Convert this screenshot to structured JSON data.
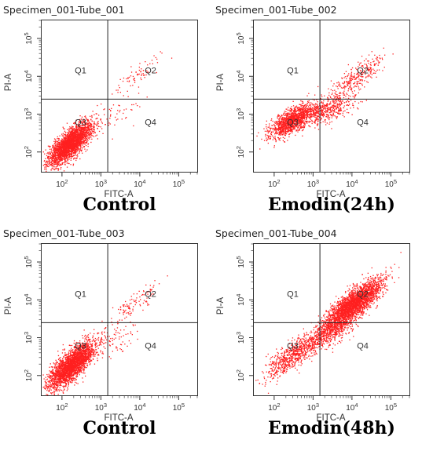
{
  "chart_data": [
    {
      "type": "scatter",
      "title": "Specimen_001-Tube_001",
      "caption": "Control",
      "xlabel": "FITC-A",
      "ylabel": "PI-A",
      "scale": "log",
      "xlim": [
        30,
        300000
      ],
      "ylim": [
        30,
        300000
      ],
      "x_ticks": [
        "10^2",
        "10^3",
        "10^4",
        "10^5"
      ],
      "y_ticks": [
        "10^2",
        "10^3",
        "10^4",
        "10^5"
      ],
      "quadrant_gate": {
        "x": 1500,
        "y": 2500
      },
      "quadrant_labels": [
        "Q1",
        "Q2",
        "Q3",
        "Q4"
      ],
      "color": "#ff2020",
      "populations": [
        {
          "name": "Q3",
          "center": [
            160,
            170
          ],
          "spread_decades": [
            0.28,
            0.28
          ],
          "corr": 0.75,
          "n": 2600
        },
        {
          "name": "Q2",
          "center": [
            10000,
            12000
          ],
          "spread_decades": [
            0.3,
            0.25
          ],
          "corr": 0.85,
          "n": 70
        },
        {
          "name": "Q4",
          "center": [
            2500,
            1000
          ],
          "spread_decades": [
            0.3,
            0.25
          ],
          "corr": 0.6,
          "n": 60
        }
      ]
    },
    {
      "type": "scatter",
      "title": "Specimen_001-Tube_002",
      "caption": "Emodin(24h)",
      "xlabel": "FITC-A",
      "ylabel": "PI-A",
      "scale": "log",
      "xlim": [
        30,
        300000
      ],
      "ylim": [
        30,
        300000
      ],
      "x_ticks": [
        "10^2",
        "10^3",
        "10^4",
        "10^5"
      ],
      "y_ticks": [
        "10^2",
        "10^3",
        "10^4",
        "10^5"
      ],
      "quadrant_gate": {
        "x": 1500,
        "y": 2500
      },
      "quadrant_labels": [
        "Q1",
        "Q2",
        "Q3",
        "Q4"
      ],
      "color": "#ff2020",
      "populations": [
        {
          "name": "Q3",
          "center": [
            300,
            700
          ],
          "spread_decades": [
            0.3,
            0.22
          ],
          "corr": 0.7,
          "n": 1400
        },
        {
          "name": "Q4",
          "center": [
            2500,
            1400
          ],
          "spread_decades": [
            0.35,
            0.22
          ],
          "corr": 0.6,
          "n": 450
        },
        {
          "name": "Q2",
          "center": [
            12000,
            9000
          ],
          "spread_decades": [
            0.35,
            0.3
          ],
          "corr": 0.8,
          "n": 300
        }
      ]
    },
    {
      "type": "scatter",
      "title": "Specimen_001-Tube_003",
      "caption": "Control",
      "xlabel": "FITC-A",
      "ylabel": "PI-A",
      "scale": "log",
      "xlim": [
        30,
        300000
      ],
      "ylim": [
        30,
        300000
      ],
      "x_ticks": [
        "10^2",
        "10^3",
        "10^4",
        "10^5"
      ],
      "y_ticks": [
        "10^2",
        "10^3",
        "10^4",
        "10^5"
      ],
      "quadrant_gate": {
        "x": 1500,
        "y": 2500
      },
      "quadrant_labels": [
        "Q1",
        "Q2",
        "Q3",
        "Q4"
      ],
      "color": "#ff2020",
      "populations": [
        {
          "name": "Q3",
          "center": [
            170,
            190
          ],
          "spread_decades": [
            0.3,
            0.3
          ],
          "corr": 0.75,
          "n": 2700
        },
        {
          "name": "Q2",
          "center": [
            8000,
            9000
          ],
          "spread_decades": [
            0.35,
            0.3
          ],
          "corr": 0.85,
          "n": 110
        },
        {
          "name": "Q4",
          "center": [
            2500,
            1000
          ],
          "spread_decades": [
            0.3,
            0.25
          ],
          "corr": 0.6,
          "n": 80
        }
      ]
    },
    {
      "type": "scatter",
      "title": "Specimen_001-Tube_004",
      "caption": "Emodin(48h)",
      "xlabel": "FITC-A",
      "ylabel": "PI-A",
      "scale": "log",
      "xlim": [
        30,
        300000
      ],
      "ylim": [
        30,
        300000
      ],
      "x_ticks": [
        "10^2",
        "10^3",
        "10^4",
        "10^5"
      ],
      "y_ticks": [
        "10^2",
        "10^3",
        "10^4",
        "10^5"
      ],
      "quadrant_gate": {
        "x": 1500,
        "y": 2500
      },
      "quadrant_labels": [
        "Q1",
        "Q2",
        "Q3",
        "Q4"
      ],
      "color": "#ff2020",
      "populations": [
        {
          "name": "Q3",
          "center": [
            300,
            350
          ],
          "spread_decades": [
            0.35,
            0.3
          ],
          "corr": 0.8,
          "n": 700
        },
        {
          "name": "Q4",
          "center": [
            3000,
            1800
          ],
          "spread_decades": [
            0.35,
            0.3
          ],
          "corr": 0.75,
          "n": 900
        },
        {
          "name": "Q2",
          "center": [
            12000,
            9000
          ],
          "spread_decades": [
            0.35,
            0.3
          ],
          "corr": 0.8,
          "n": 2300
        }
      ]
    }
  ]
}
